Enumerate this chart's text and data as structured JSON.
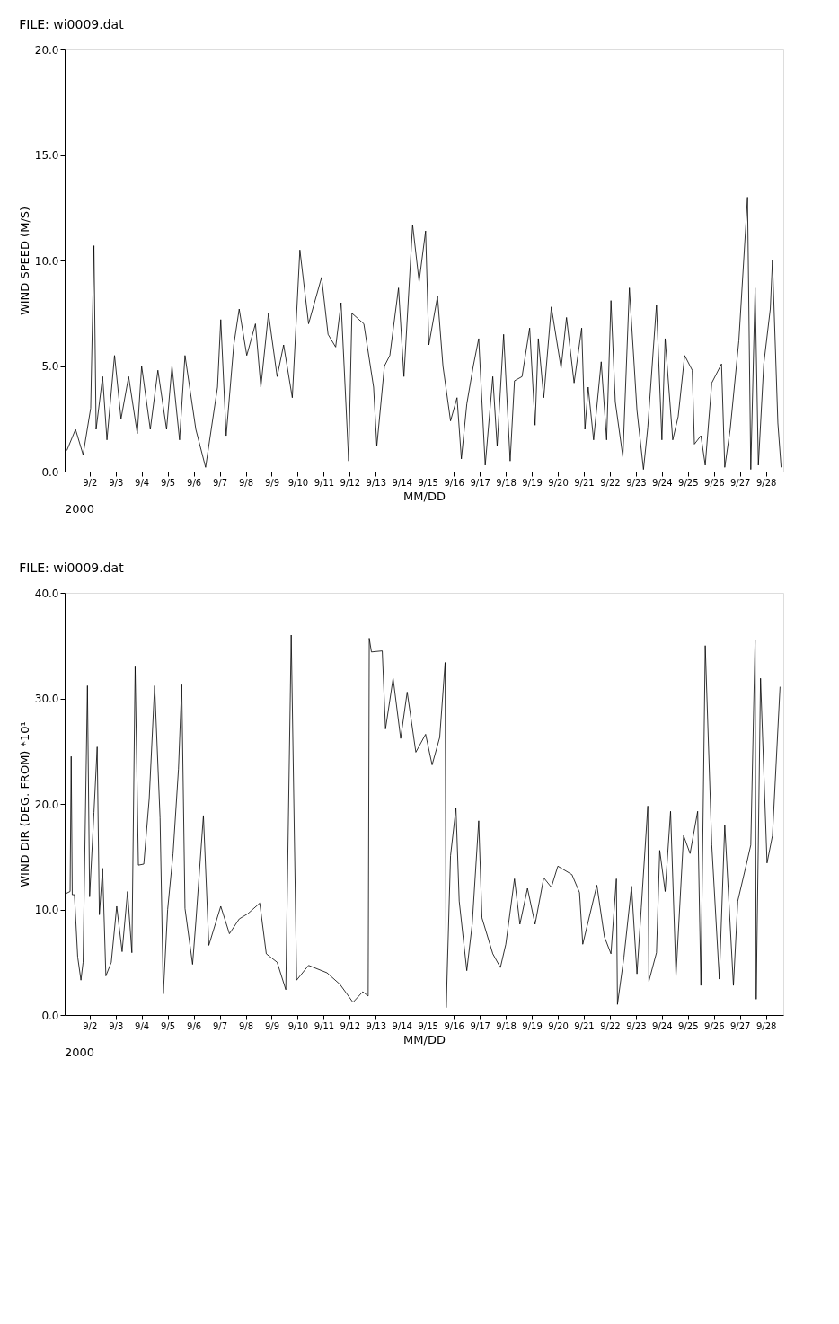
{
  "chart_data": [
    {
      "type": "line",
      "title": "FILE:  wi0009.dat",
      "xlabel": "MM/DD",
      "ylabel": "WIND SPEED (M/S)",
      "annotations": [
        "2000"
      ],
      "grid": false,
      "marker": "none",
      "line_style": "solid",
      "xlim": [
        "2000-09-01T01:00",
        "2000-09-28T16:00"
      ],
      "ylim": [
        0,
        20
      ],
      "xticks": [
        {
          "value": "2000-09-02",
          "label": "9/2"
        },
        {
          "value": "2000-09-03",
          "label": "9/3"
        },
        {
          "value": "2000-09-04",
          "label": "9/4"
        },
        {
          "value": "2000-09-05",
          "label": "9/5"
        },
        {
          "value": "2000-09-06",
          "label": "9/6"
        },
        {
          "value": "2000-09-07",
          "label": "9/7"
        },
        {
          "value": "2000-09-08",
          "label": "9/8"
        },
        {
          "value": "2000-09-09",
          "label": "9/9"
        },
        {
          "value": "2000-09-10",
          "label": "9/10"
        },
        {
          "value": "2000-09-11",
          "label": "9/11"
        },
        {
          "value": "2000-09-12",
          "label": "9/12"
        },
        {
          "value": "2000-09-13",
          "label": "9/13"
        },
        {
          "value": "2000-09-14",
          "label": "9/14"
        },
        {
          "value": "2000-09-15",
          "label": "9/15"
        },
        {
          "value": "2000-09-16",
          "label": "9/16"
        },
        {
          "value": "2000-09-17",
          "label": "9/17"
        },
        {
          "value": "2000-09-18",
          "label": "9/18"
        },
        {
          "value": "2000-09-19",
          "label": "9/19"
        },
        {
          "value": "2000-09-20",
          "label": "9/20"
        },
        {
          "value": "2000-09-21",
          "label": "9/21"
        },
        {
          "value": "2000-09-22",
          "label": "9/22"
        },
        {
          "value": "2000-09-23",
          "label": "9/23"
        },
        {
          "value": "2000-09-24",
          "label": "9/24"
        },
        {
          "value": "2000-09-25",
          "label": "9/25"
        },
        {
          "value": "2000-09-26",
          "label": "9/26"
        },
        {
          "value": "2000-09-27",
          "label": "9/27"
        },
        {
          "value": "2000-09-28",
          "label": "9/28"
        }
      ],
      "yticks": [
        {
          "value": 0,
          "label": "0.0"
        },
        {
          "value": 5,
          "label": "5.0"
        },
        {
          "value": 10,
          "label": "10.0"
        },
        {
          "value": 15,
          "label": "15.0"
        },
        {
          "value": 20,
          "label": "20.0"
        }
      ],
      "series": [
        {
          "color": "#000000",
          "x": [
            "2000-09-01T03:00",
            "2000-09-01T11:00",
            "2000-09-01T18:00",
            "2000-09-02T01:00",
            "2000-09-02T04:00",
            "2000-09-02T06:00",
            "2000-09-02T12:00",
            "2000-09-02T16:00",
            "2000-09-02T23:00",
            "2000-09-03T05:00",
            "2000-09-03T12:00",
            "2000-09-03T20:00",
            "2000-09-04T00:00",
            "2000-09-04T08:00",
            "2000-09-04T15:00",
            "2000-09-04T23:00",
            "2000-09-05T04:00",
            "2000-09-05T11:00",
            "2000-09-05T16:00",
            "2000-09-06T02:00",
            "2000-09-06T11:00",
            "2000-09-06T22:00",
            "2000-09-07T01:00",
            "2000-09-07T06:00",
            "2000-09-07T13:00",
            "2000-09-07T18:00",
            "2000-09-08T01:00",
            "2000-09-08T09:00",
            "2000-09-08T14:00",
            "2000-09-08T21:00",
            "2000-09-09T05:00",
            "2000-09-09T11:00",
            "2000-09-09T19:00",
            "2000-09-10T02:00",
            "2000-09-10T10:00",
            "2000-09-10T22:00",
            "2000-09-11T04:00",
            "2000-09-11T11:00",
            "2000-09-11T16:00",
            "2000-09-11T23:00",
            "2000-09-12T02:00",
            "2000-09-12T13:00",
            "2000-09-12T22:00",
            "2000-09-13T01:00",
            "2000-09-13T08:00",
            "2000-09-13T13:00",
            "2000-09-13T21:00",
            "2000-09-14T02:00",
            "2000-09-14T10:00",
            "2000-09-14T16:00",
            "2000-09-14T22:00",
            "2000-09-15T01:00",
            "2000-09-15T09:00",
            "2000-09-15T14:00",
            "2000-09-15T21:00",
            "2000-09-16T03:00",
            "2000-09-16T07:00",
            "2000-09-16T12:00",
            "2000-09-16T18:00",
            "2000-09-16T23:00",
            "2000-09-17T05:00",
            "2000-09-17T12:00",
            "2000-09-17T16:00",
            "2000-09-17T22:00",
            "2000-09-18T04:00",
            "2000-09-18T08:00",
            "2000-09-18T15:00",
            "2000-09-18T22:00",
            "2000-09-19T03:00",
            "2000-09-19T06:00",
            "2000-09-19T11:00",
            "2000-09-19T18:00",
            "2000-09-20T03:00",
            "2000-09-20T08:00",
            "2000-09-20T15:00",
            "2000-09-20T22:00",
            "2000-09-21T01:00",
            "2000-09-21T04:00",
            "2000-09-21T09:00",
            "2000-09-21T16:00",
            "2000-09-21T21:00",
            "2000-09-22T01:00",
            "2000-09-22T05:00",
            "2000-09-22T12:00",
            "2000-09-22T18:00",
            "2000-09-23T01:00",
            "2000-09-23T07:00",
            "2000-09-23T11:00",
            "2000-09-23T19:00",
            "2000-09-24T00:00",
            "2000-09-24T03:00",
            "2000-09-24T10:00",
            "2000-09-24T15:00",
            "2000-09-24T21:00",
            "2000-09-25T04:00",
            "2000-09-25T06:00",
            "2000-09-25T12:00",
            "2000-09-25T16:00",
            "2000-09-25T22:00",
            "2000-09-26T07:00",
            "2000-09-26T10:00",
            "2000-09-26T15:00",
            "2000-09-26T23:00",
            "2000-09-27T07:00",
            "2000-09-27T10:00",
            "2000-09-27T14:00",
            "2000-09-27T17:00",
            "2000-09-27T22:00",
            "2000-09-28T04:00",
            "2000-09-28T06:00",
            "2000-09-28T11:00",
            "2000-09-28T14:00"
          ],
          "values": [
            1.0,
            2.0,
            0.8,
            3.0,
            10.7,
            2.0,
            4.5,
            1.5,
            5.5,
            2.5,
            4.5,
            1.8,
            5.0,
            2.0,
            4.8,
            2.0,
            5.0,
            1.5,
            5.5,
            2.0,
            0.2,
            4.0,
            7.2,
            1.7,
            6.0,
            7.7,
            5.5,
            7.0,
            4.0,
            7.5,
            4.5,
            6.0,
            3.5,
            10.5,
            7.0,
            9.2,
            6.5,
            5.9,
            8.0,
            0.5,
            7.5,
            7.0,
            4.0,
            1.2,
            5.0,
            5.5,
            8.7,
            4.5,
            11.7,
            9.0,
            11.4,
            6.0,
            8.3,
            5.0,
            2.4,
            3.5,
            0.6,
            3.2,
            5.0,
            6.3,
            0.3,
            4.5,
            1.2,
            6.5,
            0.5,
            4.3,
            4.5,
            6.8,
            2.2,
            6.3,
            3.5,
            7.8,
            4.9,
            7.3,
            4.2,
            6.8,
            2.0,
            4.0,
            1.5,
            5.2,
            1.5,
            8.1,
            3.3,
            0.7,
            8.7,
            2.9,
            0.1,
            2.1,
            7.9,
            1.5,
            6.3,
            1.5,
            2.6,
            5.5,
            4.8,
            1.3,
            1.7,
            0.3,
            4.2,
            5.1,
            0.2,
            2.0,
            6.2,
            13.0,
            0.1,
            8.7,
            0.3,
            5.1,
            7.7,
            10.0,
            2.3,
            0.2
          ]
        }
      ]
    },
    {
      "type": "line",
      "title": "FILE:  wi0009.dat",
      "xlabel": "MM/DD",
      "ylabel": "WIND DIR (DEG. FROM)  *10¹",
      "annotations": [
        "2000"
      ],
      "grid": false,
      "marker": "none",
      "line_style": "solid",
      "xlim": [
        "2000-09-01T01:00",
        "2000-09-28T16:00"
      ],
      "ylim": [
        0,
        40
      ],
      "xticks": [
        {
          "value": "2000-09-02",
          "label": "9/2"
        },
        {
          "value": "2000-09-03",
          "label": "9/3"
        },
        {
          "value": "2000-09-04",
          "label": "9/4"
        },
        {
          "value": "2000-09-05",
          "label": "9/5"
        },
        {
          "value": "2000-09-06",
          "label": "9/6"
        },
        {
          "value": "2000-09-07",
          "label": "9/7"
        },
        {
          "value": "2000-09-08",
          "label": "9/8"
        },
        {
          "value": "2000-09-09",
          "label": "9/9"
        },
        {
          "value": "2000-09-10",
          "label": "9/10"
        },
        {
          "value": "2000-09-11",
          "label": "9/11"
        },
        {
          "value": "2000-09-12",
          "label": "9/12"
        },
        {
          "value": "2000-09-13",
          "label": "9/13"
        },
        {
          "value": "2000-09-14",
          "label": "9/14"
        },
        {
          "value": "2000-09-15",
          "label": "9/15"
        },
        {
          "value": "2000-09-16",
          "label": "9/16"
        },
        {
          "value": "2000-09-17",
          "label": "9/17"
        },
        {
          "value": "2000-09-18",
          "label": "9/18"
        },
        {
          "value": "2000-09-19",
          "label": "9/19"
        },
        {
          "value": "2000-09-20",
          "label": "9/20"
        },
        {
          "value": "2000-09-21",
          "label": "9/21"
        },
        {
          "value": "2000-09-22",
          "label": "9/22"
        },
        {
          "value": "2000-09-23",
          "label": "9/23"
        },
        {
          "value": "2000-09-24",
          "label": "9/24"
        },
        {
          "value": "2000-09-25",
          "label": "9/25"
        },
        {
          "value": "2000-09-26",
          "label": "9/26"
        },
        {
          "value": "2000-09-27",
          "label": "9/27"
        },
        {
          "value": "2000-09-28",
          "label": "9/28"
        }
      ],
      "yticks": [
        {
          "value": 0,
          "label": "0.0"
        },
        {
          "value": 10,
          "label": "10.0"
        },
        {
          "value": 20,
          "label": "20.0"
        },
        {
          "value": 30,
          "label": "30.0"
        },
        {
          "value": 40,
          "label": "40.0"
        }
      ],
      "series": [
        {
          "color": "#000000",
          "x": [
            "2000-09-01T02:00",
            "2000-09-01T06:00",
            "2000-09-01T07:00",
            "2000-09-01T08:00",
            "2000-09-01T10:00",
            "2000-09-01T13:00",
            "2000-09-01T16:00",
            "2000-09-01T18:00",
            "2000-09-01T22:00",
            "2000-09-02T00:00",
            "2000-09-02T04:00",
            "2000-09-02T07:00",
            "2000-09-02T09:00",
            "2000-09-02T12:00",
            "2000-09-02T15:00",
            "2000-09-02T20:00",
            "2000-09-03T01:00",
            "2000-09-03T06:00",
            "2000-09-03T11:00",
            "2000-09-03T15:00",
            "2000-09-03T18:00",
            "2000-09-03T21:00",
            "2000-09-04T02:00",
            "2000-09-04T07:00",
            "2000-09-04T12:00",
            "2000-09-04T17:00",
            "2000-09-04T20:00",
            "2000-09-05T00:00",
            "2000-09-05T05:00",
            "2000-09-05T10:00",
            "2000-09-05T13:00",
            "2000-09-05T16:00",
            "2000-09-05T23:00",
            "2000-09-06T02:00",
            "2000-09-06T09:00",
            "2000-09-06T14:00",
            "2000-09-07T01:00",
            "2000-09-07T09:00",
            "2000-09-07T18:00",
            "2000-09-08T02:00",
            "2000-09-08T13:00",
            "2000-09-08T19:00",
            "2000-09-09T05:00",
            "2000-09-09T13:00",
            "2000-09-09T18:00",
            "2000-09-09T23:00",
            "2000-09-10T10:00",
            "2000-09-11T03:00",
            "2000-09-11T15:00",
            "2000-09-12T03:00",
            "2000-09-12T12:00",
            "2000-09-12T17:00",
            "2000-09-12T18:00",
            "2000-09-12T20:00",
            "2000-09-13T06:00",
            "2000-09-13T09:00",
            "2000-09-13T16:00",
            "2000-09-13T23:00",
            "2000-09-14T05:00",
            "2000-09-14T13:00",
            "2000-09-14T22:00",
            "2000-09-15T04:00",
            "2000-09-15T11:00",
            "2000-09-15T16:00",
            "2000-09-15T17:00",
            "2000-09-15T21:00",
            "2000-09-16T02:00",
            "2000-09-16T05:00",
            "2000-09-16T12:00",
            "2000-09-16T17:00",
            "2000-09-16T23:00",
            "2000-09-17T02:00",
            "2000-09-17T12:00",
            "2000-09-17T19:00",
            "2000-09-18T00:00",
            "2000-09-18T08:00",
            "2000-09-18T13:00",
            "2000-09-18T20:00",
            "2000-09-19T03:00",
            "2000-09-19T11:00",
            "2000-09-19T18:00",
            "2000-09-20T00:00",
            "2000-09-20T13:00",
            "2000-09-20T20:00",
            "2000-09-20T23:00",
            "2000-09-21T12:00",
            "2000-09-21T19:00",
            "2000-09-22T01:00",
            "2000-09-22T06:00",
            "2000-09-22T07:00",
            "2000-09-22T13:00",
            "2000-09-22T20:00",
            "2000-09-23T01:00",
            "2000-09-23T05:00",
            "2000-09-23T11:00",
            "2000-09-23T12:00",
            "2000-09-23T19:00",
            "2000-09-23T22:00",
            "2000-09-24T03:00",
            "2000-09-24T08:00",
            "2000-09-24T13:00",
            "2000-09-24T20:00",
            "2000-09-25T02:00",
            "2000-09-25T09:00",
            "2000-09-25T12:00",
            "2000-09-25T16:00",
            "2000-09-25T22:00",
            "2000-09-26T05:00",
            "2000-09-26T10:00",
            "2000-09-26T18:00",
            "2000-09-26T22:00",
            "2000-09-27T06:00",
            "2000-09-27T10:00",
            "2000-09-27T14:00",
            "2000-09-27T15:00",
            "2000-09-27T19:00",
            "2000-09-28T01:00",
            "2000-09-28T06:00",
            "2000-09-28T13:00"
          ],
          "values": [
            11.5,
            11.7,
            24.5,
            11.4,
            11.4,
            5.5,
            3.3,
            5.0,
            31.2,
            11.2,
            19.2,
            25.4,
            9.5,
            13.9,
            3.7,
            5.0,
            10.3,
            6.0,
            11.7,
            5.9,
            33.0,
            14.2,
            14.3,
            20.5,
            31.2,
            18.7,
            2.0,
            10.0,
            15.3,
            23.3,
            31.3,
            10.1,
            4.8,
            8.8,
            18.9,
            6.6,
            10.3,
            7.7,
            9.1,
            9.6,
            10.6,
            5.8,
            5.0,
            2.4,
            36.0,
            3.3,
            4.7,
            4.0,
            2.9,
            1.2,
            2.2,
            1.8,
            35.7,
            34.4,
            34.5,
            27.1,
            31.9,
            26.2,
            30.6,
            24.9,
            26.6,
            23.7,
            26.3,
            33.4,
            0.7,
            15.1,
            19.6,
            10.8,
            4.2,
            8.6,
            18.4,
            9.2,
            5.8,
            4.5,
            6.7,
            12.9,
            8.6,
            12.0,
            8.6,
            13.0,
            12.1,
            14.1,
            13.3,
            11.6,
            6.7,
            12.3,
            7.4,
            5.8,
            12.9,
            1.0,
            5.5,
            12.2,
            3.9,
            10.2,
            19.8,
            3.2,
            5.9,
            15.6,
            11.7,
            19.3,
            3.7,
            17.0,
            15.3,
            19.3,
            2.8,
            35.0,
            16.1,
            3.4,
            18.0,
            2.8,
            10.8,
            14.3,
            16.1,
            35.5,
            1.5,
            31.9,
            14.4,
            17.0,
            31.1
          ]
        }
      ]
    }
  ]
}
